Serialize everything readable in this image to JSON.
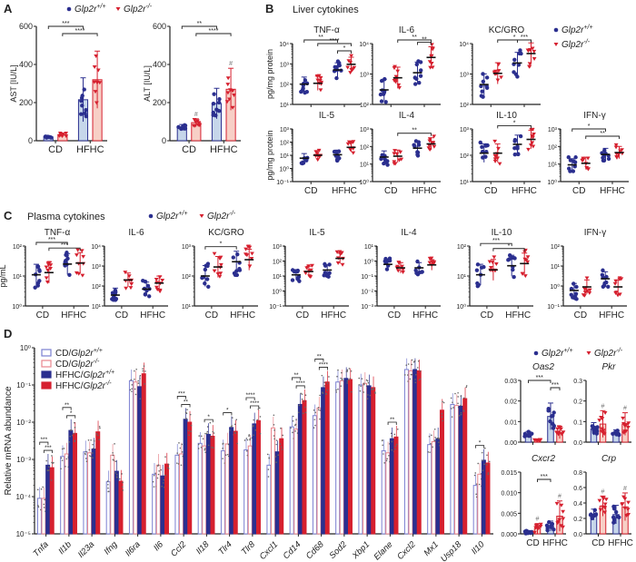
{
  "colors": {
    "wt": "#2b2f8f",
    "ko": "#d6202f",
    "wt_fill": "#c6d6ea",
    "ko_fill": "#f7cfc6",
    "cd_wt_stroke": "#7a7fd0",
    "cd_ko_stroke": "#e8868e"
  },
  "legend": {
    "gene": "Glp2r",
    "wt_sup": "+/+",
    "ko_sup": "-/-"
  },
  "panel_a": {
    "label": "A",
    "charts": [
      {
        "type": "bar",
        "ylabel": "AST [IU/L]",
        "log": false,
        "ylim": [
          0,
          600
        ],
        "yticks": [
          "0",
          "200",
          "400",
          "600"
        ],
        "xticks": [
          "CD",
          "HFHC"
        ],
        "means": [
          20,
          30,
          215,
          320
        ],
        "sd": [
          5,
          10,
          115,
          150
        ],
        "sig": [
          [
            0,
            2,
            "***"
          ],
          [
            1,
            3,
            "****"
          ]
        ],
        "hash": []
      },
      {
        "type": "bar",
        "ylabel": "ALT [IU/L]",
        "log": false,
        "ylim": [
          0,
          600
        ],
        "yticks": [
          "0",
          "200",
          "400",
          "600"
        ],
        "xticks": [
          "CD",
          "HFHC"
        ],
        "means": [
          70,
          95,
          195,
          270
        ],
        "sd": [
          15,
          20,
          80,
          110
        ],
        "sig": [
          [
            0,
            2,
            "**"
          ],
          [
            1,
            3,
            "****"
          ]
        ],
        "hash": [
          1,
          3
        ]
      }
    ]
  },
  "panel_b": {
    "label": "B",
    "title": "Liver cytokines",
    "ylabel": "pg/mg protein",
    "xticks": [
      "CD",
      "HFHC"
    ],
    "charts": [
      {
        "title": "TNF-α",
        "log": true,
        "ylim": [
          10,
          10000
        ],
        "yticks": [
          "10¹",
          "10²",
          "10³",
          "10⁴"
        ],
        "means": [
          100,
          110,
          500,
          950
        ],
        "sig": [
          [
            0,
            2,
            "**"
          ],
          [
            1,
            3,
            "****"
          ],
          [
            2,
            3,
            "*"
          ]
        ]
      },
      {
        "title": "IL-6",
        "log": true,
        "ylim": [
          100,
          10000
        ],
        "yticks": [
          "10²",
          "10³",
          "10⁴"
        ],
        "means": [
          300,
          750,
          1100,
          3500
        ],
        "sig": [
          [
            1,
            3,
            "**"
          ],
          [
            2,
            3,
            "**"
          ]
        ]
      },
      {
        "title": "KC/GRO",
        "log": true,
        "ylim": [
          100,
          10000
        ],
        "yticks": [
          "10²",
          "10³",
          "10⁴"
        ],
        "means": [
          450,
          1050,
          2300,
          4700
        ],
        "sig": [
          [
            1,
            3,
            "*"
          ],
          [
            2,
            3,
            "***"
          ]
        ]
      },
      {
        "title": "IL-5",
        "log": true,
        "ylim": [
          0.1,
          1000
        ],
        "yticks": [
          "10⁻¹",
          "10⁰",
          "10¹",
          "10²",
          "10³"
        ],
        "means": [
          6,
          10,
          11,
          40
        ],
        "sig": []
      },
      {
        "title": "IL-4",
        "log": true,
        "ylim": [
          1,
          1000
        ],
        "yticks": [
          "10⁰",
          "10¹",
          "10²",
          "10³"
        ],
        "means": [
          25,
          28,
          80,
          140
        ],
        "sig": [
          [
            1,
            3,
            "**"
          ]
        ]
      },
      {
        "title": "IL-10",
        "log": true,
        "ylim": [
          10,
          1000
        ],
        "yticks": [
          "10¹",
          "10²",
          "10³"
        ],
        "means": [
          120,
          120,
          260,
          400
        ],
        "sig": [
          [
            1,
            3,
            "*"
          ]
        ]
      },
      {
        "title": "IFN-γ",
        "log": true,
        "ylim": [
          1,
          1000
        ],
        "yticks": [
          "10⁰",
          "10¹",
          "10²",
          "10³"
        ],
        "means": [
          9,
          11,
          35,
          45
        ],
        "sig": [
          [
            0,
            2,
            "*"
          ],
          [
            1,
            3,
            "**"
          ]
        ]
      }
    ]
  },
  "panel_c": {
    "label": "C",
    "title": "Plasma cytokines",
    "ylabel": "pg/mL",
    "xticks": [
      "CD",
      "HFHC"
    ],
    "charts": [
      {
        "title": "TNF-α",
        "log": true,
        "ylim": [
          1,
          100
        ],
        "yticks": [
          "10⁰",
          "10¹",
          "10²"
        ],
        "means": [
          11,
          13,
          25,
          27
        ],
        "sig": [
          [
            0,
            2,
            "***"
          ],
          [
            1,
            3,
            "***"
          ]
        ]
      },
      {
        "title": "IL-6",
        "log": true,
        "ylim": [
          10,
          10000
        ],
        "yticks": [
          "10¹",
          "10²",
          "10³",
          "10⁴"
        ],
        "means": [
          35,
          200,
          70,
          140
        ],
        "sig": []
      },
      {
        "title": "KC/GRO",
        "log": true,
        "ylim": [
          10,
          1000
        ],
        "yticks": [
          "10¹",
          "10²",
          "10³"
        ],
        "means": [
          100,
          200,
          300,
          350
        ],
        "sig": [
          [
            0,
            2,
            "*"
          ]
        ]
      },
      {
        "title": "IL-5",
        "log": true,
        "ylim": [
          0.1,
          1000
        ],
        "yticks": [
          "10⁻¹",
          "10⁰",
          "10¹",
          "10²",
          "10³"
        ],
        "means": [
          12,
          20,
          25,
          150
        ],
        "sig": []
      },
      {
        "title": "IL-4",
        "log": true,
        "ylim": [
          0.001,
          10
        ],
        "yticks": [
          "10⁻³",
          "10⁻²",
          "10⁻¹",
          "10⁰",
          "10¹"
        ],
        "means": [
          0.6,
          0.35,
          0.35,
          0.55
        ],
        "sig": []
      },
      {
        "title": "IL-10",
        "log": true,
        "ylim": [
          1,
          100
        ],
        "yticks": [
          "10⁰",
          "10¹",
          "10²"
        ],
        "means": [
          11,
          16,
          22,
          26
        ],
        "sig": [
          [
            0,
            2,
            "***"
          ],
          [
            1,
            3,
            "*"
          ]
        ]
      },
      {
        "title": "IFN-γ",
        "log": true,
        "ylim": [
          0.1,
          100
        ],
        "yticks": [
          "10⁻¹",
          "10⁰",
          "10¹",
          "10²"
        ],
        "means": [
          0.6,
          0.9,
          2.3,
          0.9
        ],
        "sig": []
      }
    ]
  },
  "panel_d": {
    "label": "D",
    "chart_data": {
      "type": "bar",
      "log": true,
      "ylabel": "Relative mRNA abundance",
      "ylim": [
        1e-05,
        1
      ],
      "yticks": [
        "10⁻⁵",
        "10⁻⁴",
        "10⁻³",
        "10⁻²",
        "10⁻¹",
        "10⁰"
      ],
      "series": [
        {
          "name": "CD/",
          "gene": "Glp2r",
          "sup": "+/+"
        },
        {
          "name": "CD/",
          "gene": "Glp2r",
          "sup": "-/-"
        },
        {
          "name": "HFHC/",
          "gene": "Glp2r",
          "sup": "+/+"
        },
        {
          "name": "HFHC/",
          "gene": "Glp2r",
          "sup": "-/-"
        }
      ],
      "categories": [
        "Tnfa",
        "Il1b",
        "Il23a",
        "Ifng",
        "Il6ra",
        "Il6",
        "Ccl2",
        "Il18",
        "Tlr4",
        "Tlr8",
        "Cxcl1",
        "Cd14",
        "Cd68",
        "Sod2",
        "Xbp1",
        "Elane",
        "Cxcl2",
        "Mx1",
        "Usp18",
        "Il10"
      ],
      "values": [
        [
          9e-05,
          9e-05,
          0.0007,
          0.0006
        ],
        [
          0.0012,
          0.0014,
          0.006,
          0.005
        ],
        [
          0.0016,
          0.0015,
          0.0019,
          0.0055
        ],
        [
          0.00025,
          0.0013,
          0.00048,
          0.00026
        ],
        [
          0.13,
          0.12,
          0.09,
          0.2
        ],
        [
          0.0004,
          0.0007,
          0.00036,
          0.00075
        ],
        [
          0.0013,
          0.0014,
          0.012,
          0.01
        ],
        [
          0.0027,
          0.0023,
          0.0047,
          0.0042
        ],
        [
          0.0017,
          0.0026,
          0.0072,
          0.0057
        ],
        [
          0.0018,
          0.0023,
          0.009,
          0.011
        ],
        [
          0.0007,
          0.007,
          0.0016,
          0.0036
        ],
        [
          0.0075,
          0.0065,
          0.03,
          0.038
        ],
        [
          0.015,
          0.024,
          0.085,
          0.12
        ],
        [
          0.12,
          0.13,
          0.15,
          0.14
        ],
        [
          0.1,
          0.11,
          0.095,
          0.085
        ],
        [
          0.0017,
          0.0015,
          0.0036,
          0.004
        ],
        [
          0.26,
          0.24,
          0.26,
          0.24
        ],
        [
          0.0025,
          0.003,
          0.0036,
          0.021
        ],
        [
          0.03,
          0.028,
          0.027,
          0.043
        ],
        [
          0.0002,
          0.0004,
          0.00095,
          0.0008
        ]
      ],
      "sig": {
        "Tnfa": [
          [
            0,
            2,
            "***"
          ],
          [
            1,
            3,
            "***"
          ]
        ],
        "Il1b": [
          [
            0,
            2,
            "**"
          ],
          [
            1,
            3,
            "*"
          ]
        ],
        "Ccl2": [
          [
            0,
            2,
            "***"
          ],
          [
            1,
            3,
            "**"
          ]
        ],
        "Il18": [
          [
            1,
            3,
            "*"
          ]
        ],
        "Tlr4": [
          [
            0,
            2,
            "*"
          ]
        ],
        "Tlr8": [
          [
            0,
            2,
            "****"
          ],
          [
            1,
            3,
            "****"
          ]
        ],
        "Cd14": [
          [
            0,
            2,
            "**"
          ],
          [
            1,
            3,
            "****"
          ]
        ],
        "Cd68": [
          [
            0,
            2,
            "**"
          ],
          [
            1,
            3,
            "****"
          ]
        ],
        "Elane": [
          [
            1,
            3,
            "**"
          ]
        ],
        "Il10": [
          [
            0,
            2,
            "*"
          ]
        ]
      }
    },
    "small_charts": [
      {
        "title": "Oas2",
        "log": false,
        "ylim": [
          0,
          0.03
        ],
        "yticks": [
          "0.00",
          "0.01",
          "0.02",
          "0.03"
        ],
        "means": [
          0.0037,
          0.001,
          0.0125,
          0.0047
        ],
        "sd": [
          0.0015,
          0.0003,
          0.0065,
          0.003
        ],
        "sig": [
          [
            0,
            2,
            "***"
          ],
          [
            2,
            3,
            "***"
          ]
        ],
        "hash": []
      },
      {
        "title": "Pkr",
        "log": false,
        "ylim": [
          0,
          0.3
        ],
        "yticks": [
          "0.0",
          "0.1",
          "0.2",
          "0.3"
        ],
        "means": [
          0.065,
          0.088,
          0.045,
          0.088
        ],
        "sd": [
          0.03,
          0.065,
          0.015,
          0.055
        ],
        "sig": [],
        "hash": [
          1,
          3
        ]
      },
      {
        "title": "Cxcr2",
        "log": false,
        "ylim": [
          0,
          0.015
        ],
        "yticks": [
          "0.000",
          "0.005",
          "0.010",
          "0.015"
        ],
        "means": [
          0.0004,
          0.0013,
          0.0019,
          0.0043
        ],
        "sd": [
          0.0004,
          0.0012,
          0.0012,
          0.0037
        ],
        "sig": [
          [
            1,
            2,
            "***"
          ]
        ],
        "hash": [
          1,
          3
        ]
      },
      {
        "title": "Crp",
        "log": false,
        "ylim": [
          0,
          0.8
        ],
        "yticks": [
          "0.0",
          "0.2",
          "0.4",
          "0.6",
          "0.8"
        ],
        "means": [
          0.25,
          0.36,
          0.25,
          0.35
        ],
        "sd": [
          0.07,
          0.13,
          0.12,
          0.18
        ],
        "sig": [],
        "hash": [
          1,
          3
        ]
      }
    ],
    "xticks": [
      "CD",
      "HFHC"
    ]
  }
}
